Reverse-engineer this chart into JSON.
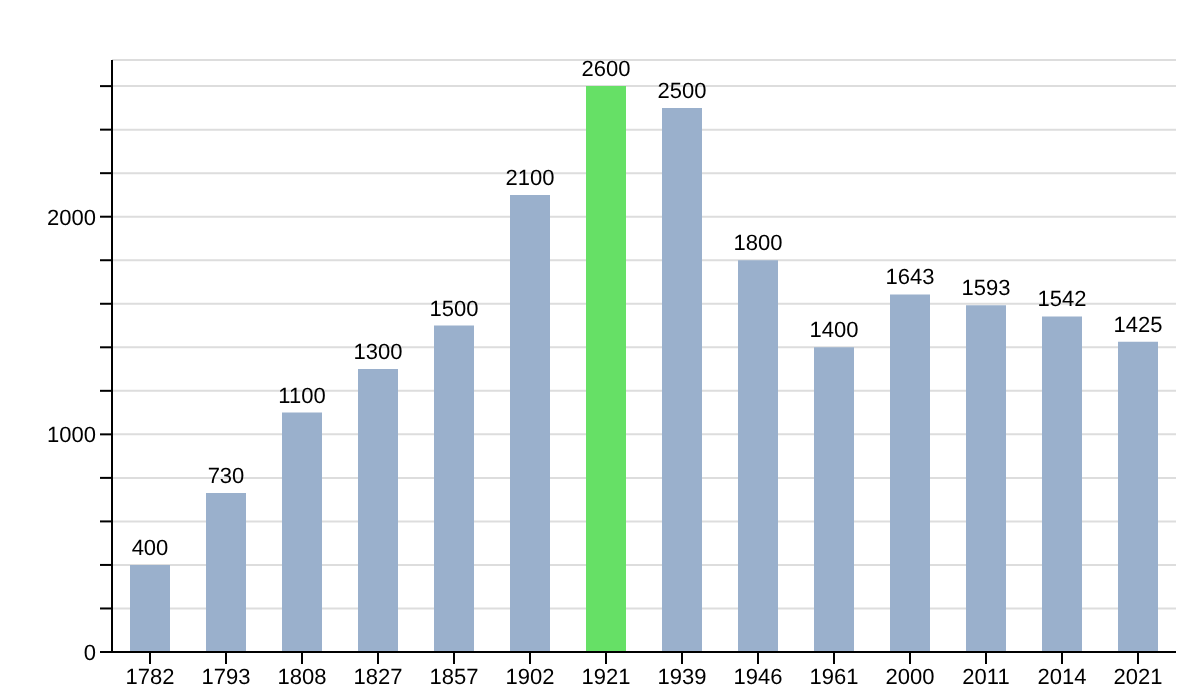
{
  "chart_data": {
    "type": "bar",
    "categories": [
      "1782",
      "1793",
      "1808",
      "1827",
      "1857",
      "1902",
      "1921",
      "1939",
      "1946",
      "1961",
      "2000",
      "2011",
      "2014",
      "2021"
    ],
    "values": [
      400,
      730,
      1100,
      1300,
      1500,
      2100,
      2600,
      2500,
      1800,
      1400,
      1643,
      1593,
      1542,
      1425
    ],
    "colors": [
      "#9ab0cc",
      "#9ab0cc",
      "#9ab0cc",
      "#9ab0cc",
      "#9ab0cc",
      "#9ab0cc",
      "#66e066",
      "#9ab0cc",
      "#9ab0cc",
      "#9ab0cc",
      "#9ab0cc",
      "#9ab0cc",
      "#9ab0cc",
      "#9ab0cc"
    ],
    "ylim": [
      0,
      2720
    ],
    "yticks": [
      0,
      {
        "value": 200,
        "label": null
      },
      {
        "value": 400,
        "label": null
      },
      {
        "value": 600,
        "label": null
      },
      {
        "value": 800,
        "label": null
      },
      1000,
      {
        "value": 1200,
        "label": null
      },
      {
        "value": 1400,
        "label": null
      },
      {
        "value": 1600,
        "label": null
      },
      {
        "value": 1800,
        "label": null
      },
      2000,
      {
        "value": 2200,
        "label": null
      },
      {
        "value": 2400,
        "label": null
      },
      {
        "value": 2600,
        "label": null
      }
    ],
    "grid": "y",
    "data_labels": true
  }
}
